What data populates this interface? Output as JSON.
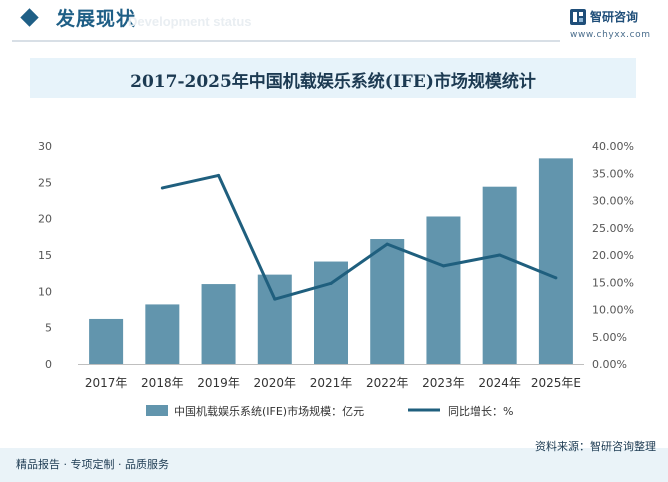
{
  "header": {
    "section_title": "发展现状",
    "ghost_text": "Development status"
  },
  "brand": {
    "name": "智研咨询",
    "url": "www.chyxx.com",
    "logo_icon": "chyxx-logo-icon"
  },
  "chart_data": {
    "type": "bar",
    "title": "2017-2025年中国机载娱乐系统(IFE)市场规模统计",
    "categories": [
      "2017年",
      "2018年",
      "2019年",
      "2020年",
      "2021年",
      "2022年",
      "2023年",
      "2024年",
      "2025年E"
    ],
    "series": [
      {
        "name": "中国机载娱乐系统(IFE)市场规模：亿元",
        "type": "bar",
        "axis": "left",
        "color": "#6295ad",
        "values": [
          6.2,
          8.2,
          11.0,
          12.3,
          14.1,
          17.2,
          20.3,
          24.4,
          28.3
        ]
      },
      {
        "name": "同比增长：%",
        "type": "line",
        "axis": "right",
        "color": "#1f5f7e",
        "values": [
          null,
          32.3,
          34.6,
          11.9,
          14.8,
          22.0,
          18.0,
          20.0,
          15.8
        ]
      }
    ],
    "y_left": {
      "min": 0,
      "max": 30,
      "ticks": [
        "0",
        "5",
        "10",
        "15",
        "20",
        "25",
        "30"
      ]
    },
    "y_right": {
      "min": 0,
      "max": 40,
      "ticks": [
        "0.00%",
        "5.00%",
        "10.00%",
        "15.00%",
        "20.00%",
        "25.00%",
        "30.00%",
        "35.00%",
        "40.00%"
      ]
    },
    "grid": false,
    "legend_position": "bottom"
  },
  "footer": {
    "left_text": "精品报告 · 专项定制 · 品质服务",
    "source_text": "资料来源：智研咨询整理"
  }
}
